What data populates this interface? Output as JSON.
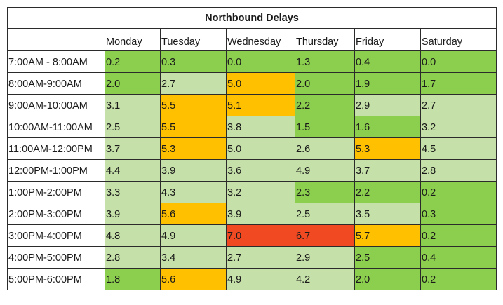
{
  "title": "Northbound Delays",
  "days": [
    "Monday",
    "Tuesday",
    "Wednesday",
    "Thursday",
    "Friday",
    "Saturday"
  ],
  "colors": {
    "green": "#8ccf4e",
    "lightgreen": "#c5e0a8",
    "orange": "#ffc000",
    "red": "#f14a23"
  },
  "rows": [
    {
      "time": "7:00AM - 8:00AM",
      "cells": [
        {
          "v": "0.2",
          "c": "green"
        },
        {
          "v": "0.3",
          "c": "green"
        },
        {
          "v": "0.0",
          "c": "green"
        },
        {
          "v": "1.3",
          "c": "green"
        },
        {
          "v": "0.4",
          "c": "green"
        },
        {
          "v": "0.0",
          "c": "green"
        }
      ]
    },
    {
      "time": "8:00AM-9:00AM",
      "cells": [
        {
          "v": "2.0",
          "c": "green"
        },
        {
          "v": "2.7",
          "c": "lightgreen"
        },
        {
          "v": "5.0",
          "c": "orange"
        },
        {
          "v": "2.0",
          "c": "green"
        },
        {
          "v": "1.9",
          "c": "green"
        },
        {
          "v": "1.7",
          "c": "green"
        }
      ]
    },
    {
      "time": "9:00AM-10:00AM",
      "cells": [
        {
          "v": "3.1",
          "c": "lightgreen"
        },
        {
          "v": "5.5",
          "c": "orange"
        },
        {
          "v": "5.1",
          "c": "orange"
        },
        {
          "v": "2.2",
          "c": "green"
        },
        {
          "v": "2.9",
          "c": "lightgreen"
        },
        {
          "v": "2.7",
          "c": "lightgreen"
        }
      ]
    },
    {
      "time": "10:00AM-11:00AM",
      "cells": [
        {
          "v": "2.5",
          "c": "lightgreen"
        },
        {
          "v": "5.5",
          "c": "orange"
        },
        {
          "v": "3.8",
          "c": "lightgreen"
        },
        {
          "v": "1.5",
          "c": "green"
        },
        {
          "v": "1.6",
          "c": "green"
        },
        {
          "v": "3.2",
          "c": "lightgreen"
        }
      ]
    },
    {
      "time": "11:00AM-12:00PM",
      "cells": [
        {
          "v": "3.7",
          "c": "lightgreen"
        },
        {
          "v": "5.3",
          "c": "orange"
        },
        {
          "v": "5.0",
          "c": "lightgreen"
        },
        {
          "v": "2.6",
          "c": "lightgreen"
        },
        {
          "v": "5.3",
          "c": "orange"
        },
        {
          "v": "4.5",
          "c": "lightgreen"
        }
      ]
    },
    {
      "time": "12:00PM-1:00PM",
      "cells": [
        {
          "v": "4.4",
          "c": "lightgreen"
        },
        {
          "v": "3.9",
          "c": "lightgreen"
        },
        {
          "v": "3.6",
          "c": "lightgreen"
        },
        {
          "v": "4.9",
          "c": "lightgreen"
        },
        {
          "v": "3.7",
          "c": "lightgreen"
        },
        {
          "v": "2.8",
          "c": "lightgreen"
        }
      ]
    },
    {
      "time": "1:00PM-2:00PM",
      "cells": [
        {
          "v": "3.3",
          "c": "lightgreen"
        },
        {
          "v": "4.3",
          "c": "lightgreen"
        },
        {
          "v": "3.2",
          "c": "lightgreen"
        },
        {
          "v": "2.3",
          "c": "green"
        },
        {
          "v": "2.2",
          "c": "green"
        },
        {
          "v": "0.2",
          "c": "green"
        }
      ]
    },
    {
      "time": "2:00PM-3:00PM",
      "cells": [
        {
          "v": "3.9",
          "c": "lightgreen"
        },
        {
          "v": "5.6",
          "c": "orange"
        },
        {
          "v": "3.9",
          "c": "lightgreen"
        },
        {
          "v": "2.5",
          "c": "lightgreen"
        },
        {
          "v": "3.5",
          "c": "lightgreen"
        },
        {
          "v": "0.3",
          "c": "green"
        }
      ]
    },
    {
      "time": "3:00PM-4:00PM",
      "cells": [
        {
          "v": "4.8",
          "c": "lightgreen"
        },
        {
          "v": "4.9",
          "c": "lightgreen"
        },
        {
          "v": "7.0",
          "c": "red"
        },
        {
          "v": "6.7",
          "c": "red"
        },
        {
          "v": "5.7",
          "c": "orange"
        },
        {
          "v": "0.2",
          "c": "green"
        }
      ]
    },
    {
      "time": "4:00PM-5:00PM",
      "cells": [
        {
          "v": "2.8",
          "c": "lightgreen"
        },
        {
          "v": "3.4",
          "c": "lightgreen"
        },
        {
          "v": "2.7",
          "c": "lightgreen"
        },
        {
          "v": "2.9",
          "c": "lightgreen"
        },
        {
          "v": "2.5",
          "c": "green"
        },
        {
          "v": "0.4",
          "c": "green"
        }
      ]
    },
    {
      "time": "5:00PM-6:00PM",
      "cells": [
        {
          "v": "1.8",
          "c": "green"
        },
        {
          "v": "5.6",
          "c": "orange"
        },
        {
          "v": "4.9",
          "c": "lightgreen"
        },
        {
          "v": "4.2",
          "c": "lightgreen"
        },
        {
          "v": "2.0",
          "c": "green"
        },
        {
          "v": "0.2",
          "c": "green"
        }
      ]
    }
  ]
}
